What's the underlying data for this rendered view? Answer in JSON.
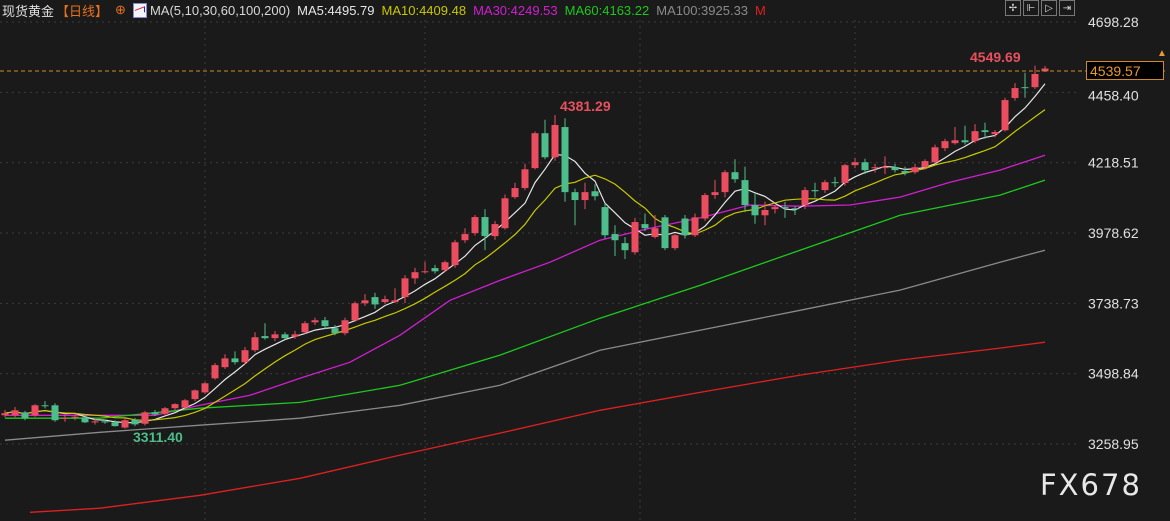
{
  "header": {
    "instrument": "现货黄金",
    "period": "【日线】",
    "period_icon": "circle-plus-icon",
    "ma_params": "MA(5,10,30,60,100,200)",
    "ma_values": [
      {
        "label": "MA5:4495.79",
        "color": "#e6e6e6"
      },
      {
        "label": "MA10:4409.48",
        "color": "#c8c800"
      },
      {
        "label": "MA30:4249.53",
        "color": "#d21ed2"
      },
      {
        "label": "MA60:4163.22",
        "color": "#1ec81e"
      },
      {
        "label": "MA100:3925.33",
        "color": "#8a8a8a"
      }
    ],
    "m_label": "M",
    "m_color": "#e02020"
  },
  "toolbar": {
    "icons": [
      "crosshair-icon",
      "zoom-range-icon",
      "play-forward-icon",
      "exit-icon"
    ]
  },
  "current_price": "4539.57",
  "watermark": "FX678",
  "colors": {
    "up": "#ea4d5f",
    "down": "#4dbd8b",
    "background": "#1a1a1a",
    "current_line": "#d08a2a"
  },
  "chart_data": {
    "type": "candlestick",
    "y_ticks": [
      "4698.28",
      "4458.40",
      "4218.51",
      "3978.62",
      "3738.73",
      "3498.84",
      "3258.95"
    ],
    "ylim": [
      3258.95,
      4698.28
    ],
    "grid": true,
    "annotations": {
      "high": "4381.29",
      "low": "3311.40",
      "recent_high": "4549.69"
    },
    "candles": [
      [
        3357,
        3375,
        3350,
        3364
      ],
      [
        3357,
        3385,
        3350,
        3374
      ],
      [
        3367,
        3372,
        3340,
        3347
      ],
      [
        3357,
        3395,
        3352,
        3391
      ],
      [
        3391,
        3405,
        3380,
        3388
      ],
      [
        3391,
        3398,
        3335,
        3340
      ],
      [
        3345,
        3358,
        3335,
        3348
      ],
      [
        3350,
        3360,
        3340,
        3352
      ],
      [
        3350,
        3360,
        3330,
        3333
      ],
      [
        3333,
        3345,
        3325,
        3336
      ],
      [
        3336,
        3342,
        3328,
        3333
      ],
      [
        3333,
        3340,
        3318,
        3320
      ],
      [
        3315,
        3345,
        3311.4,
        3340
      ],
      [
        3342,
        3348,
        3320,
        3326
      ],
      [
        3328,
        3372,
        3322,
        3367
      ],
      [
        3367,
        3375,
        3355,
        3360
      ],
      [
        3362,
        3385,
        3355,
        3381
      ],
      [
        3381,
        3398,
        3375,
        3395
      ],
      [
        3383,
        3412,
        3378,
        3408
      ],
      [
        3412,
        3445,
        3405,
        3442
      ],
      [
        3435,
        3470,
        3430,
        3466
      ],
      [
        3483,
        3535,
        3478,
        3528
      ],
      [
        3521,
        3565,
        3515,
        3551
      ],
      [
        3551,
        3575,
        3530,
        3538
      ],
      [
        3538,
        3590,
        3530,
        3579
      ],
      [
        3579,
        3640,
        3572,
        3623
      ],
      [
        3627,
        3671,
        3615,
        3620
      ],
      [
        3620,
        3645,
        3610,
        3633
      ],
      [
        3633,
        3640,
        3615,
        3620
      ],
      [
        3625,
        3645,
        3618,
        3633
      ],
      [
        3640,
        3678,
        3635,
        3671
      ],
      [
        3674,
        3690,
        3665,
        3681
      ],
      [
        3681,
        3692,
        3650,
        3661
      ],
      [
        3654,
        3665,
        3630,
        3637
      ],
      [
        3637,
        3690,
        3630,
        3681
      ],
      [
        3681,
        3745,
        3675,
        3739
      ],
      [
        3739,
        3770,
        3730,
        3749
      ],
      [
        3760,
        3775,
        3720,
        3735
      ],
      [
        3743,
        3765,
        3738,
        3753
      ],
      [
        3743,
        3790,
        3740,
        3749
      ],
      [
        3760,
        3835,
        3740,
        3824
      ],
      [
        3824,
        3860,
        3805,
        3845
      ],
      [
        3845,
        3880,
        3840,
        3848
      ],
      [
        3859,
        3870,
        3840,
        3848
      ],
      [
        3852,
        3885,
        3845,
        3879
      ],
      [
        3869,
        3955,
        3860,
        3947
      ],
      [
        3954,
        3995,
        3945,
        3975
      ],
      [
        3978,
        4040,
        3970,
        4033
      ],
      [
        4033,
        4060,
        3920,
        3968
      ],
      [
        3968,
        4020,
        3955,
        4009
      ],
      [
        3995,
        4110,
        3990,
        4097
      ],
      [
        4101,
        4150,
        4095,
        4132
      ],
      [
        4132,
        4215,
        4125,
        4196
      ],
      [
        4200,
        4325,
        4195,
        4319
      ],
      [
        4319,
        4365,
        4230,
        4237
      ],
      [
        4237,
        4381.29,
        4225,
        4347
      ],
      [
        4340,
        4370,
        4085,
        4118
      ],
      [
        4118,
        4130,
        4005,
        4091
      ],
      [
        4091,
        4150,
        4060,
        4118
      ],
      [
        4121,
        4145,
        4090,
        4104
      ],
      [
        4067,
        4080,
        3960,
        3971
      ],
      [
        3975,
        4005,
        3900,
        3954
      ],
      [
        3944,
        3965,
        3890,
        3920
      ],
      [
        3913,
        4030,
        3905,
        4016
      ],
      [
        4009,
        4045,
        3985,
        3995
      ],
      [
        3965,
        4040,
        3960,
        3995
      ],
      [
        4032,
        4040,
        3920,
        3927
      ],
      [
        3927,
        3975,
        3920,
        3971
      ],
      [
        4028,
        4040,
        3960,
        3971
      ],
      [
        3971,
        4045,
        3965,
        4032
      ],
      [
        4028,
        4115,
        4020,
        4108
      ],
      [
        4108,
        4160,
        4095,
        4118
      ],
      [
        4118,
        4193,
        4100,
        4186
      ],
      [
        4186,
        4230,
        4150,
        4162
      ],
      [
        4159,
        4205,
        4050,
        4074
      ],
      [
        4074,
        4115,
        4010,
        4039
      ],
      [
        4039,
        4085,
        4005,
        4057
      ],
      [
        4060,
        4075,
        4045,
        4067
      ],
      [
        4067,
        4085,
        4030,
        4063
      ],
      [
        4063,
        4070,
        4040,
        4060
      ],
      [
        4074,
        4135,
        4060,
        4125
      ],
      [
        4125,
        4150,
        4100,
        4121
      ],
      [
        4125,
        4160,
        4115,
        4152
      ],
      [
        4152,
        4170,
        4135,
        4149
      ],
      [
        4149,
        4215,
        4140,
        4210
      ],
      [
        4210,
        4235,
        4200,
        4220
      ],
      [
        4220,
        4232,
        4180,
        4193
      ],
      [
        4200,
        4215,
        4185,
        4203
      ],
      [
        4200,
        4240,
        4180,
        4205
      ],
      [
        4203,
        4215,
        4185,
        4193
      ],
      [
        4190,
        4205,
        4175,
        4183
      ],
      [
        4186,
        4215,
        4180,
        4203
      ],
      [
        4203,
        4230,
        4195,
        4224
      ],
      [
        4220,
        4280,
        4215,
        4271
      ],
      [
        4268,
        4300,
        4258,
        4292
      ],
      [
        4285,
        4340,
        4280,
        4295
      ],
      [
        4295,
        4345,
        4280,
        4288
      ],
      [
        4292,
        4350,
        4285,
        4326
      ],
      [
        4329,
        4355,
        4300,
        4323
      ],
      [
        4316,
        4330,
        4305,
        4323
      ],
      [
        4329,
        4440,
        4325,
        4432
      ],
      [
        4439,
        4490,
        4430,
        4473
      ],
      [
        4476,
        4525,
        4440,
        4473
      ],
      [
        4476,
        4549.69,
        4470,
        4521
      ],
      [
        4530,
        4548,
        4528,
        4539.57
      ]
    ],
    "ma_series": [
      {
        "name": "MA30",
        "color": "#d21ed2",
        "points": [
          [
            0,
            3357
          ],
          [
            15,
            3357
          ],
          [
            19.5,
            3391
          ],
          [
            24.5,
            3425
          ],
          [
            29.5,
            3483
          ],
          [
            34.5,
            3538
          ],
          [
            39.5,
            3630
          ],
          [
            44.5,
            3749
          ],
          [
            49.5,
            3817
          ],
          [
            54.5,
            3879
          ],
          [
            59.5,
            3954
          ],
          [
            64.5,
            3995
          ],
          [
            69.5,
            4030
          ],
          [
            74.5,
            4074
          ],
          [
            79.5,
            4070
          ],
          [
            84.5,
            4074
          ],
          [
            89.5,
            4101
          ],
          [
            94.5,
            4152
          ],
          [
            99.5,
            4193
          ],
          [
            104,
            4244
          ]
        ]
      },
      {
        "name": "MA60",
        "color": "#1ec81e",
        "points": [
          [
            0,
            3347
          ],
          [
            9.5,
            3347
          ],
          [
            19.5,
            3381
          ],
          [
            29.5,
            3401
          ],
          [
            39.5,
            3459
          ],
          [
            49.5,
            3562
          ],
          [
            59.5,
            3688
          ],
          [
            69.5,
            3800
          ],
          [
            79.5,
            3920
          ],
          [
            89.5,
            4039
          ],
          [
            99.5,
            4108
          ],
          [
            104,
            4159
          ]
        ]
      },
      {
        "name": "MA100",
        "color": "#8a8a8a",
        "points": [
          [
            0,
            3272
          ],
          [
            9.5,
            3299
          ],
          [
            19.5,
            3323
          ],
          [
            29.5,
            3347
          ],
          [
            39.5,
            3391
          ],
          [
            49.5,
            3459
          ],
          [
            59.5,
            3579
          ],
          [
            69.5,
            3647
          ],
          [
            79.5,
            3715
          ],
          [
            89.5,
            3784
          ],
          [
            99.5,
            3879
          ],
          [
            104,
            3920
          ]
        ]
      },
      {
        "name": "MA200",
        "color": "#e02020",
        "points": [
          [
            2.5,
            3026
          ],
          [
            9.5,
            3040
          ],
          [
            19.5,
            3084
          ],
          [
            29.5,
            3142
          ],
          [
            39.5,
            3221
          ],
          [
            49.5,
            3296
          ],
          [
            59.5,
            3374
          ],
          [
            69.5,
            3435
          ],
          [
            79.5,
            3494
          ],
          [
            89.5,
            3545
          ],
          [
            99.5,
            3586
          ],
          [
            104,
            3606
          ]
        ]
      }
    ],
    "computed_ma": [
      {
        "name": "MA5",
        "period": 5,
        "color": "#e6e6e6"
      },
      {
        "name": "MA10",
        "period": 10,
        "color": "#c8c800"
      }
    ]
  }
}
